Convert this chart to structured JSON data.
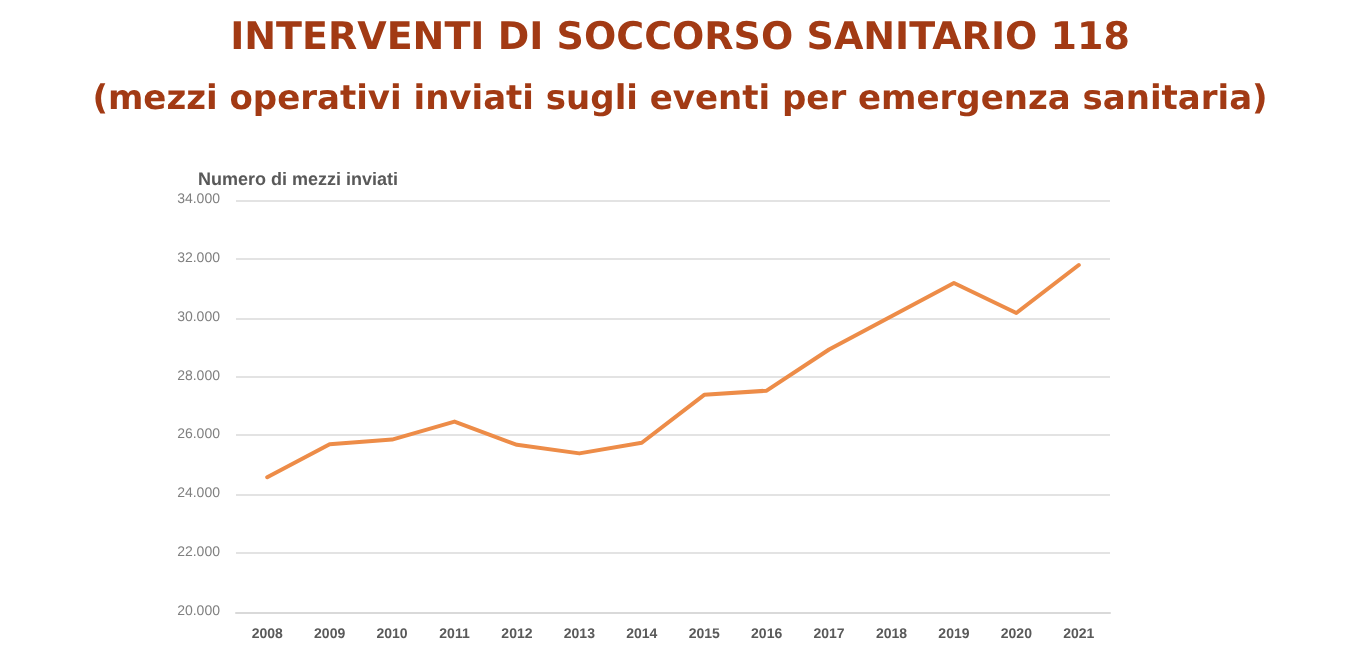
{
  "chart_data": {
    "type": "line",
    "title": "INTERVENTI DI SOCCORSO SANITARIO 118",
    "subtitle": "(mezzi operativi inviati sugli eventi per emergenza sanitaria)",
    "ylabel": "Numero di mezzi inviati",
    "categories": [
      "2008",
      "2009",
      "2010",
      "2011",
      "2012",
      "2013",
      "2014",
      "2015",
      "2016",
      "2017",
      "2018",
      "2019",
      "2020",
      "2021"
    ],
    "series": [
      {
        "color": "#ed8c48",
        "values": [
          24580,
          25700,
          25860,
          26470,
          25680,
          25390,
          25750,
          27380,
          27520,
          28920,
          30050,
          31180,
          30160,
          31790
        ]
      }
    ],
    "ylim": [
      20000,
      34000
    ],
    "yticks": [
      {
        "value": 20000,
        "label": "20.000"
      },
      {
        "value": 22000,
        "label": "22.000"
      },
      {
        "value": 24000,
        "label": "24.000"
      },
      {
        "value": 26000,
        "label": "26.000"
      },
      {
        "value": 28000,
        "label": "28.000"
      },
      {
        "value": 30000,
        "label": "30.000"
      },
      {
        "value": 32000,
        "label": "32.000"
      },
      {
        "value": 34000,
        "label": "34.000"
      }
    ],
    "grid": "y",
    "marker": "none",
    "line_style": "solid"
  }
}
